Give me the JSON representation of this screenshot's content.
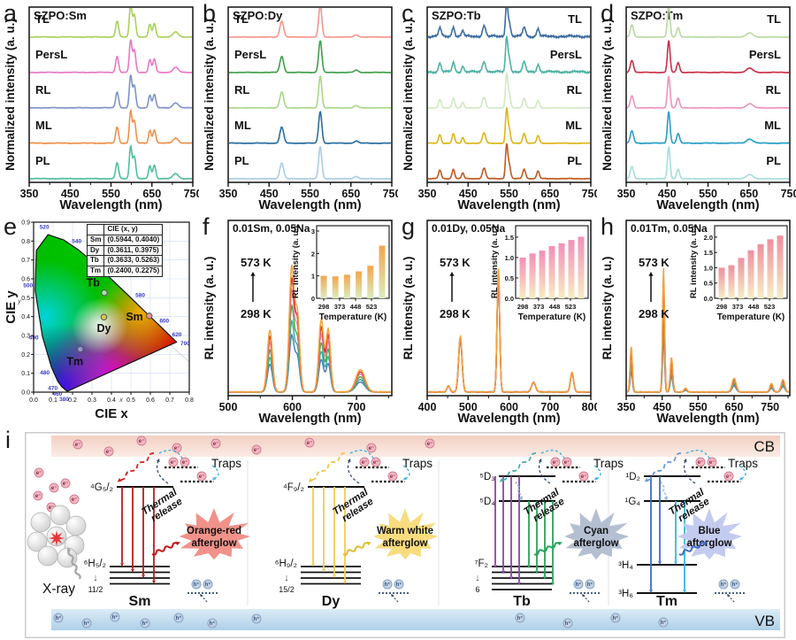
{
  "figure": {
    "background": "#ffffff"
  },
  "chart_data": [
    {
      "panel": "a",
      "type": "line",
      "stacked": true,
      "title": "SZPO:Sm",
      "xlabel": "Wavelength (nm)",
      "ylabel": "Normalized intensity (a. u.)",
      "xlim": [
        350,
        750
      ],
      "xticks": [
        350,
        450,
        550,
        650,
        750
      ],
      "label_side": "left",
      "peaks_nm": [
        [
          565,
          5,
          0.5
        ],
        [
          598,
          4.5,
          1.0
        ],
        [
          607,
          5,
          0.7
        ],
        [
          645,
          4.5,
          0.4
        ],
        [
          656,
          5,
          0.42
        ],
        [
          708,
          9,
          0.16
        ]
      ],
      "series": [
        {
          "name": "TL",
          "color": "#a9d158",
          "noise": 0.012
        },
        {
          "name": "PersL",
          "color": "#e878c2",
          "noise": 0.012
        },
        {
          "name": "RL",
          "color": "#7e93c9",
          "noise": 0.012
        },
        {
          "name": "ML",
          "color": "#f0914e",
          "noise": 0.016
        },
        {
          "name": "PL",
          "color": "#4fbf9e",
          "noise": 0.012
        }
      ]
    },
    {
      "panel": "b",
      "type": "line",
      "stacked": true,
      "title": "SZPO:Dy",
      "xlabel": "Wavelength (nm)",
      "ylabel": "Normalized intensity (a. u.)",
      "xlim": [
        350,
        750
      ],
      "xticks": [
        350,
        450,
        550,
        650,
        750
      ],
      "label_side": "left",
      "peaks_nm": [
        [
          481,
          6.5,
          0.5
        ],
        [
          575,
          5.5,
          1.0
        ],
        [
          663,
          7,
          0.07
        ]
      ],
      "series": [
        {
          "name": "TL",
          "color": "#f4968c",
          "noise": 0.008
        },
        {
          "name": "PersL",
          "color": "#3f9e49",
          "noise": 0.01
        },
        {
          "name": "RL",
          "color": "#a8d785",
          "noise": 0.008
        },
        {
          "name": "ML",
          "color": "#2a6d9e",
          "noise": 0.014
        },
        {
          "name": "PL",
          "color": "#a9cde4",
          "noise": 0.008
        }
      ]
    },
    {
      "panel": "c",
      "type": "line",
      "stacked": true,
      "title": "SZPO:Tb",
      "xlabel": "Wavelength (nm)",
      "ylabel": "Normalized intensity (a. u.)",
      "xlim": [
        350,
        750
      ],
      "xticks": [
        350,
        450,
        550,
        650,
        750
      ],
      "label_side": "right",
      "peaks_nm": [
        [
          381,
          4.5,
          0.27
        ],
        [
          414,
          4.5,
          0.3
        ],
        [
          437,
          4,
          0.18
        ],
        [
          489,
          5.5,
          0.33
        ],
        [
          544,
          3.8,
          1.0
        ],
        [
          550,
          5,
          0.45
        ],
        [
          587,
          5,
          0.3
        ],
        [
          621,
          4.5,
          0.24
        ]
      ],
      "series": [
        {
          "name": "TL",
          "color": "#3c6da0",
          "noise": 0.05
        },
        {
          "name": "PersL",
          "color": "#4db3a4",
          "noise": 0.045
        },
        {
          "name": "RL",
          "color": "#cfe9c2",
          "noise": 0.006
        },
        {
          "name": "ML",
          "color": "#ddb517",
          "noise": 0.012
        },
        {
          "name": "PL",
          "color": "#c05a20",
          "noise": 0.012
        }
      ]
    },
    {
      "panel": "d",
      "type": "line",
      "stacked": true,
      "title": "SZPO:Tm",
      "xlabel": "Wavelength (nm)",
      "ylabel": "Normalized intensity (a. u.)",
      "xlim": [
        350,
        750
      ],
      "xticks": [
        350,
        450,
        550,
        650,
        750
      ],
      "label_side": "right",
      "peaks_nm": [
        [
          364,
          5.5,
          0.38
        ],
        [
          454,
          4.5,
          1.0
        ],
        [
          477,
          5,
          0.3
        ],
        [
          652,
          11,
          0.13
        ]
      ],
      "series": [
        {
          "name": "TL",
          "color": "#b8d9a2",
          "noise": 0.008
        },
        {
          "name": "PersL",
          "color": "#c9304a",
          "noise": 0.012
        },
        {
          "name": "RL",
          "color": "#ec93ba",
          "noise": 0.008
        },
        {
          "name": "ML",
          "color": "#29a0c8",
          "noise": 0.016
        },
        {
          "name": "PL",
          "color": "#a5dede",
          "noise": 0.008
        }
      ]
    },
    {
      "panel": "e",
      "type": "scatter",
      "xlabel": "CIE x",
      "ylabel": "CIE y",
      "xlim": [
        0,
        0.8
      ],
      "ylim": [
        0,
        0.9
      ],
      "xticks": [
        "0.0",
        "0.1",
        "0.2",
        "0.3",
        "0.4",
        "0.5",
        "0.6",
        "0.7",
        "0.8"
      ],
      "yticks": [
        "0.0",
        "0.1",
        "0.2",
        "0.3",
        "0.4",
        "0.5",
        "0.6",
        "0.7",
        "0.8",
        "0.9"
      ],
      "inner_axis_letters": {
        "x": "x",
        "y": "y"
      },
      "points": [
        {
          "name": "Sm",
          "x": 0.5944,
          "y": 0.404,
          "color": "#e2928c"
        },
        {
          "name": "Dy",
          "x": 0.3611,
          "y": 0.3975,
          "color": "#d9c24f"
        },
        {
          "name": "Tb",
          "x": 0.3633,
          "y": 0.5263,
          "color": "#b0dca8"
        },
        {
          "name": "Tm",
          "x": 0.24,
          "y": 0.2275,
          "color": "#9793dc"
        }
      ],
      "locus_labels": [
        "380",
        "460",
        "470",
        "480",
        "490",
        "500",
        "520",
        "540",
        "560",
        "580",
        "600",
        "620",
        "700"
      ],
      "table": {
        "header": [
          "",
          "CIE (x, y)"
        ],
        "rows": [
          [
            "Sm",
            "(0.5944, 0.4040)"
          ],
          [
            "Dy",
            "(0.3611, 0.3975)"
          ],
          [
            "Tb",
            "(0.3633, 0.5263)"
          ],
          [
            "Tm",
            "(0.2400, 0.2275)"
          ]
        ]
      }
    },
    {
      "panel": "f",
      "type": "line",
      "title": "0.01Sm, 0.05Na",
      "xlabel": "Wavelength (nm)",
      "ylabel": "RL intensity (a. u.)",
      "xlim": [
        500,
        755
      ],
      "xticks": [
        500,
        600,
        700
      ],
      "annotation_high": "573 K",
      "annotation_low": "298 K",
      "peaks_nm": [
        [
          565,
          5.5,
          0.5
        ],
        [
          599,
          5.5,
          1.0
        ],
        [
          608,
          5,
          0.6
        ],
        [
          645,
          5.5,
          0.58
        ],
        [
          656,
          5,
          0.5
        ],
        [
          706,
          10,
          0.18
        ]
      ],
      "temp_series": [
        {
          "scale": 0.45,
          "color": "#4a7ec2"
        },
        {
          "scale": 0.56,
          "color": "#3fae9f"
        },
        {
          "scale": 0.68,
          "color": "#4ba84f"
        },
        {
          "scale": 0.8,
          "color": "#ef8db4"
        },
        {
          "scale": 0.9,
          "color": "#df2b2b"
        },
        {
          "scale": 1.0,
          "color": "#f5a23c"
        }
      ],
      "inset": {
        "ylabel": "RL intensity (a. u.)",
        "xlabel": "Temperature (K)",
        "xticks": [
          298,
          373,
          448,
          523
        ],
        "yticks": [
          "0",
          "1",
          "2",
          "3"
        ],
        "ylim": [
          0,
          3
        ],
        "values": [
          1.0,
          0.98,
          1.05,
          1.2,
          1.45,
          2.35
        ],
        "bar_top": "#f2a64e",
        "bar_bottom": "#dcedc0"
      }
    },
    {
      "panel": "g",
      "type": "line",
      "title": "0.01Dy, 0.05Na",
      "xlabel": "Wavelength (nm)",
      "ylabel": "RL intensity (a. u.)",
      "xlim": [
        400,
        800
      ],
      "xticks": [
        400,
        500,
        600,
        700,
        800
      ],
      "annotation_high": "573 K",
      "annotation_low": "298 K",
      "peaks_nm": [
        [
          452,
          5,
          0.05
        ],
        [
          481,
          6,
          0.45
        ],
        [
          574,
          4.5,
          1.0
        ],
        [
          660,
          7,
          0.08
        ],
        [
          754,
          5.5,
          0.16
        ]
      ],
      "temp_series": [
        {
          "scale": 0.94,
          "color": "#4a7ec2"
        },
        {
          "scale": 0.955,
          "color": "#3fae9f"
        },
        {
          "scale": 0.965,
          "color": "#4ba84f"
        },
        {
          "scale": 0.975,
          "color": "#ef8db4"
        },
        {
          "scale": 0.985,
          "color": "#df2b2b"
        },
        {
          "scale": 1.0,
          "color": "#f5a23c"
        }
      ],
      "inset": {
        "ylabel": "RL intensity (a. u.)",
        "xlabel": "Temperature (K)",
        "xticks": [
          298,
          373,
          448,
          523
        ],
        "yticks": [
          "0.0",
          "0.5",
          "1.0",
          "1.5"
        ],
        "ylim": [
          0,
          1.65
        ],
        "values": [
          1.0,
          1.1,
          1.17,
          1.28,
          1.35,
          1.43,
          1.51
        ],
        "bar_top": "#f48fb8",
        "bar_bottom": "#f8ecc2"
      }
    },
    {
      "panel": "h",
      "type": "line",
      "title": "0.01Tm, 0.05Na",
      "xlabel": "Wavelength (nm)",
      "ylabel": "RL intensity (a. u.)",
      "xlim": [
        350,
        805
      ],
      "xticks": [
        350,
        450,
        550,
        650,
        750
      ],
      "annotation_high": "573 K",
      "annotation_low": "298 K",
      "peaks_nm": [
        [
          364,
          4.5,
          0.37
        ],
        [
          454,
          4,
          1.0
        ],
        [
          476,
          5,
          0.28
        ],
        [
          515,
          6,
          0.03
        ],
        [
          650,
          8,
          0.11
        ],
        [
          754,
          6,
          0.07
        ],
        [
          786,
          7,
          0.1
        ]
      ],
      "temp_series": [
        {
          "scale": 0.45,
          "color": "#4a7ec2"
        },
        {
          "scale": 0.56,
          "color": "#3fae9f"
        },
        {
          "scale": 0.66,
          "color": "#4ba84f"
        },
        {
          "scale": 0.78,
          "color": "#ef8db4"
        },
        {
          "scale": 0.9,
          "color": "#df2b2b"
        },
        {
          "scale": 1.0,
          "color": "#f5a23c"
        }
      ],
      "inset": {
        "ylabel": "RL intensity (a. u.)",
        "xlabel": "Temperature (K)",
        "xticks": [
          298,
          373,
          448,
          523
        ],
        "yticks": [
          "0.0",
          "0.5",
          "1.0",
          "1.5",
          "2.0"
        ],
        "ylim": [
          0,
          2.2
        ],
        "values": [
          1.0,
          1.08,
          1.32,
          1.57,
          1.77,
          1.93,
          2.05
        ],
        "bar_top": "#ef8f9e",
        "bar_bottom": "#f6eec5"
      }
    }
  ],
  "energy_diagram": {
    "panel": "i",
    "cb_label": "CB",
    "vb_label": "VB",
    "xray_label": "X-ray",
    "electron_symbol": "e⁻",
    "hole_symbol": "h⁺",
    "traps_label": "Traps",
    "thermal_release": [
      "Thermal",
      "release"
    ],
    "ions": [
      {
        "name": "Sm",
        "top_levels": [
          "⁴G₅/₂"
        ],
        "ground_label": "⁶H₅/₂",
        "ground_arrow": "↓",
        "ground_sub": "11/2",
        "ground_lines": 4,
        "transition_colors": [
          "#b51d1d"
        ],
        "capture_color": "#cc2222",
        "emission_color": "#c31414",
        "afterglow": [
          "Orange-red",
          "afterglow"
        ],
        "afterglow_color": "#f0928a"
      },
      {
        "name": "Dy",
        "top_levels": [
          "⁴F₉/₂"
        ],
        "ground_label": "⁶H₉/₂",
        "ground_arrow": "↓",
        "ground_sub": "15/2",
        "ground_lines": 4,
        "transition_colors": [
          "#eecd55"
        ],
        "capture_color": "#e8c84a",
        "emission_color": "#e3bc2e",
        "afterglow": [
          "Warm white",
          "afterglow"
        ],
        "afterglow_color": "#f8dc7e"
      },
      {
        "name": "Tb",
        "top_levels": [
          "⁵D₃",
          "⁵D₄"
        ],
        "ground_label": "⁷F₂",
        "ground_arrow": "↓",
        "ground_sub": "6",
        "ground_lines": 5,
        "transition_colors": [
          "#8e44ad",
          "#2ba05c"
        ],
        "capture_color": "#45b0a8",
        "emission_color": "#22a35a",
        "afterglow": [
          "Cyan",
          "afterglow"
        ],
        "afterglow_color": "#b4bfd2"
      },
      {
        "name": "Tm",
        "top_levels": [
          "¹D₂",
          "¹G₄"
        ],
        "ground_levels": [
          "³H₄",
          "³H₆"
        ],
        "transition_colors": [
          "#3e6cc0",
          "#35b5e5"
        ],
        "capture_color": "#6699d8",
        "emission_color": "#3e6cc0",
        "afterglow": [
          "Blue",
          "afterglow"
        ],
        "afterglow_color": "#c3cbee"
      }
    ]
  }
}
